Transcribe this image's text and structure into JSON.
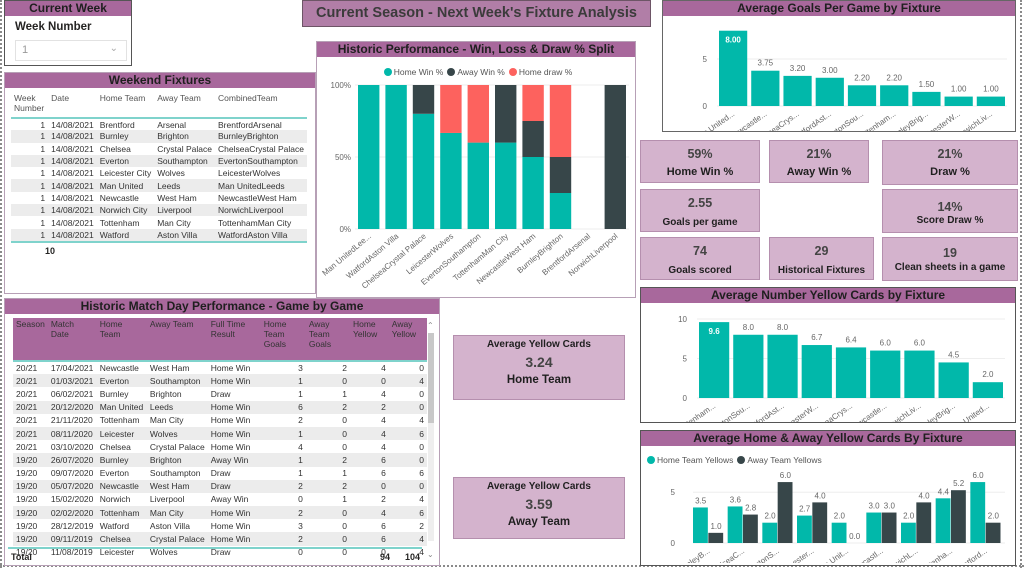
{
  "colors": {
    "teal": "#01b8aa",
    "dark": "#374649",
    "red": "#fd625e",
    "header_purple": "#a8689c",
    "card_pink": "#d4b3cd"
  },
  "header": {
    "title": "Current Season - Next Week's Fixture Analysis"
  },
  "current_week": {
    "title": "Current Week",
    "label": "Week Number",
    "selected": "1",
    "chevron_icon": "chevron-down-icon"
  },
  "weekend_fixtures": {
    "title": "Weekend Fixtures",
    "columns": [
      "Week Number",
      "Date",
      "Home Team",
      "Away Team",
      "CombinedTeam"
    ],
    "rows": [
      [
        "1",
        "14/08/2021",
        "Brentford",
        "Arsenal",
        "BrentfordArsenal"
      ],
      [
        "1",
        "14/08/2021",
        "Burnley",
        "Brighton",
        "BurnleyBrighton"
      ],
      [
        "1",
        "14/08/2021",
        "Chelsea",
        "Crystal Palace",
        "ChelseaCrystal Palace"
      ],
      [
        "1",
        "14/08/2021",
        "Everton",
        "Southampton",
        "EvertonSouthampton"
      ],
      [
        "1",
        "14/08/2021",
        "Leicester City",
        "Wolves",
        "LeicesterWolves"
      ],
      [
        "1",
        "14/08/2021",
        "Man United",
        "Leeds",
        "Man UnitedLeeds"
      ],
      [
        "1",
        "14/08/2021",
        "Newcastle",
        "West Ham",
        "NewcastleWest Ham"
      ],
      [
        "1",
        "14/08/2021",
        "Norwich City",
        "Liverpool",
        "NorwichLiverpool"
      ],
      [
        "1",
        "14/08/2021",
        "Tottenham",
        "Man City",
        "TottenhamMan City"
      ],
      [
        "1",
        "14/08/2021",
        "Watford",
        "Aston Villa",
        "WatfordAston Villa"
      ]
    ],
    "total": "10"
  },
  "historic_match": {
    "title": "Historic Match Day Performance - Game by Game",
    "columns": [
      "Season",
      "Match Date",
      "Home Team",
      "Away Team",
      "Full Time Result",
      "Home Team Goals",
      "Away Team Goals",
      "Home Yellow",
      "Away Yellow"
    ],
    "rows": [
      [
        "20/21",
        "17/04/2021",
        "Newcastle",
        "West Ham",
        "Home Win",
        "3",
        "2",
        "4",
        "0"
      ],
      [
        "20/21",
        "01/03/2021",
        "Everton",
        "Southampton",
        "Home Win",
        "1",
        "0",
        "0",
        "4"
      ],
      [
        "20/21",
        "06/02/2021",
        "Burnley",
        "Brighton",
        "Draw",
        "1",
        "1",
        "4",
        "0"
      ],
      [
        "20/21",
        "20/12/2020",
        "Man United",
        "Leeds",
        "Home Win",
        "6",
        "2",
        "2",
        "0"
      ],
      [
        "20/21",
        "21/11/2020",
        "Tottenham",
        "Man City",
        "Home Win",
        "2",
        "0",
        "4",
        "4"
      ],
      [
        "20/21",
        "08/11/2020",
        "Leicester",
        "Wolves",
        "Home Win",
        "1",
        "0",
        "4",
        "6"
      ],
      [
        "20/21",
        "03/10/2020",
        "Chelsea",
        "Crystal Palace",
        "Home Win",
        "4",
        "0",
        "4",
        "0"
      ],
      [
        "19/20",
        "26/07/2020",
        "Burnley",
        "Brighton",
        "Away Win",
        "1",
        "2",
        "6",
        "0"
      ],
      [
        "19/20",
        "09/07/2020",
        "Everton",
        "Southampton",
        "Draw",
        "1",
        "1",
        "6",
        "6"
      ],
      [
        "19/20",
        "05/07/2020",
        "Newcastle",
        "West Ham",
        "Draw",
        "2",
        "2",
        "0",
        "0"
      ],
      [
        "19/20",
        "15/02/2020",
        "Norwich",
        "Liverpool",
        "Away Win",
        "0",
        "1",
        "2",
        "4"
      ],
      [
        "19/20",
        "02/02/2020",
        "Tottenham",
        "Man City",
        "Home Win",
        "2",
        "0",
        "4",
        "6"
      ],
      [
        "19/20",
        "28/12/2019",
        "Watford",
        "Aston Villa",
        "Home Win",
        "3",
        "0",
        "6",
        "2"
      ],
      [
        "19/20",
        "09/11/2019",
        "Chelsea",
        "Crystal Palace",
        "Home Win",
        "2",
        "0",
        "6",
        "4"
      ],
      [
        "19/20",
        "11/08/2019",
        "Leicester",
        "Wolves",
        "Draw",
        "0",
        "0",
        "0",
        "4"
      ]
    ],
    "total_label": "Total",
    "total_home_yellow": "94",
    "total_away_yellow": "104"
  },
  "yellow_cards": {
    "home": {
      "title": "Average Yellow Cards",
      "value": "3.24",
      "subtitle": "Home Team"
    },
    "away": {
      "title": "Average Yellow Cards",
      "value": "3.59",
      "subtitle": "Away Team"
    }
  },
  "kpis": [
    {
      "value": "59%",
      "label": "Home Win %"
    },
    {
      "value": "21%",
      "label": "Away Win %"
    },
    {
      "value": "21%",
      "label": "Draw %"
    },
    {
      "value": "2.55",
      "label": "Goals per game"
    },
    {
      "value": "14%",
      "label": "Score Draw %"
    },
    {
      "value": "74",
      "label": "Goals scored"
    },
    {
      "value": "29",
      "label": "Historical Fixtures"
    },
    {
      "value": "19",
      "label": "Clean sheets in a game"
    }
  ],
  "chart_data": [
    {
      "id": "historic-split",
      "type": "bar",
      "stacked": "100%",
      "title": "Historic Performance - Win, Loss & Draw % Split",
      "categories": [
        "Man UnitedLee...",
        "WatfordAston Villa",
        "ChelseaCrystal Palace",
        "LeicesterWolves",
        "EvertonSouthampton",
        "TottenhamMan City",
        "NewcastleWest Ham",
        "BurnleyBrighton",
        "BrentfordArsenal",
        "NorwichLiverpool"
      ],
      "series": [
        {
          "name": "Home Win %",
          "color": "#01b8aa",
          "values": [
            100,
            100,
            80,
            66.7,
            60,
            60,
            50,
            25,
            0,
            0
          ]
        },
        {
          "name": "Away Win %",
          "color": "#374649",
          "values": [
            0,
            0,
            20,
            0,
            0,
            40,
            25,
            25,
            0,
            100
          ]
        },
        {
          "name": "Home draw %",
          "color": "#fd625e",
          "values": [
            0,
            0,
            0,
            33.3,
            40,
            0,
            25,
            50,
            0,
            0
          ]
        }
      ],
      "yticks": [
        "0%",
        "50%",
        "100%"
      ],
      "ylim": [
        0,
        100
      ],
      "legend": "top-center"
    },
    {
      "id": "avg-goals",
      "type": "bar",
      "title": "Average Goals Per Game by Fixture",
      "categories": [
        "Man United...",
        "Newcastle...",
        "ChelseaCrys...",
        "WatfordAst...",
        "EvertonSou...",
        "Tottenham...",
        "BurnleyBrig...",
        "LeicesterW...",
        "NorwichLiv..."
      ],
      "values": [
        8.0,
        3.75,
        3.2,
        3.0,
        2.2,
        2.2,
        1.5,
        1.0,
        1.0
      ],
      "labels": [
        "8.00",
        "3.75",
        "3.20",
        "3.00",
        "2.20",
        "2.20",
        "1.50",
        "1.00",
        "1.00"
      ],
      "yticks": [
        "0",
        "5"
      ],
      "ylim": [
        0,
        8.5
      ],
      "color": "#01b8aa"
    },
    {
      "id": "avg-yellow",
      "type": "bar",
      "title": "Average Number Yellow Cards by Fixture",
      "categories": [
        "Tottenham...",
        "EvertonSou...",
        "WatfordAst...",
        "LeicesterW...",
        "ChelseaCrys...",
        "Newcastle...",
        "NorwichLiv...",
        "BurnleyBrig...",
        "Man United..."
      ],
      "values": [
        9.6,
        8.0,
        8.0,
        6.7,
        6.4,
        6.0,
        6.0,
        4.5,
        2.0
      ],
      "labels": [
        "9.6",
        "8.0",
        "8.0",
        "6.7",
        "6.4",
        "6.0",
        "6.0",
        "4.5",
        "2.0"
      ],
      "yticks": [
        "0",
        "5",
        "10"
      ],
      "ylim": [
        0,
        10.5
      ],
      "color": "#01b8aa"
    },
    {
      "id": "ha-yellow",
      "type": "bar",
      "grouped": true,
      "title": "Average Home & Away Yellow Cards By Fixture",
      "categories": [
        "BurnleyB...",
        "ChelseaC...",
        "EvertonS...",
        "Leicester...",
        "Man Unit...",
        "Newcastl...",
        "NorwichL...",
        "Tottenha...",
        "Watford..."
      ],
      "series": [
        {
          "name": "Home Team Yellows",
          "color": "#01b8aa",
          "values": [
            3.5,
            3.6,
            2.0,
            2.7,
            2.0,
            3.0,
            2.0,
            4.4,
            6.0
          ]
        },
        {
          "name": "Away Team Yellows",
          "color": "#374649",
          "values": [
            1.0,
            2.8,
            6.0,
            4.0,
            0.0,
            3.0,
            4.0,
            5.2,
            2.0
          ]
        }
      ],
      "yticks": [
        "0",
        "5"
      ],
      "ylim": [
        0,
        6.5
      ],
      "legend": "top-left"
    }
  ]
}
